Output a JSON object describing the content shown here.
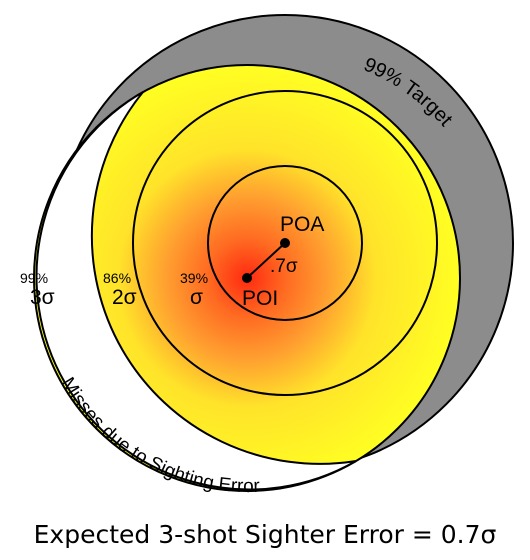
{
  "target_label": "99% Target",
  "miss_label": "Misses due to Sighting Error",
  "poa_label": "POA",
  "poi_label": "POI",
  "offset_label": ".7σ",
  "rings": [
    {
      "pct": "99%",
      "sigma": "3σ"
    },
    {
      "pct": "86%",
      "sigma": "2σ"
    },
    {
      "pct": "39%",
      "sigma": "σ"
    }
  ],
  "caption": "Expected 3-shot Sighter Error = 0.7σ",
  "colors": {
    "target_fill": "#8c8c8c",
    "pattern_center": "#ff2a10",
    "pattern_mid": "#ffa030",
    "pattern_outer": "#ffff22"
  }
}
